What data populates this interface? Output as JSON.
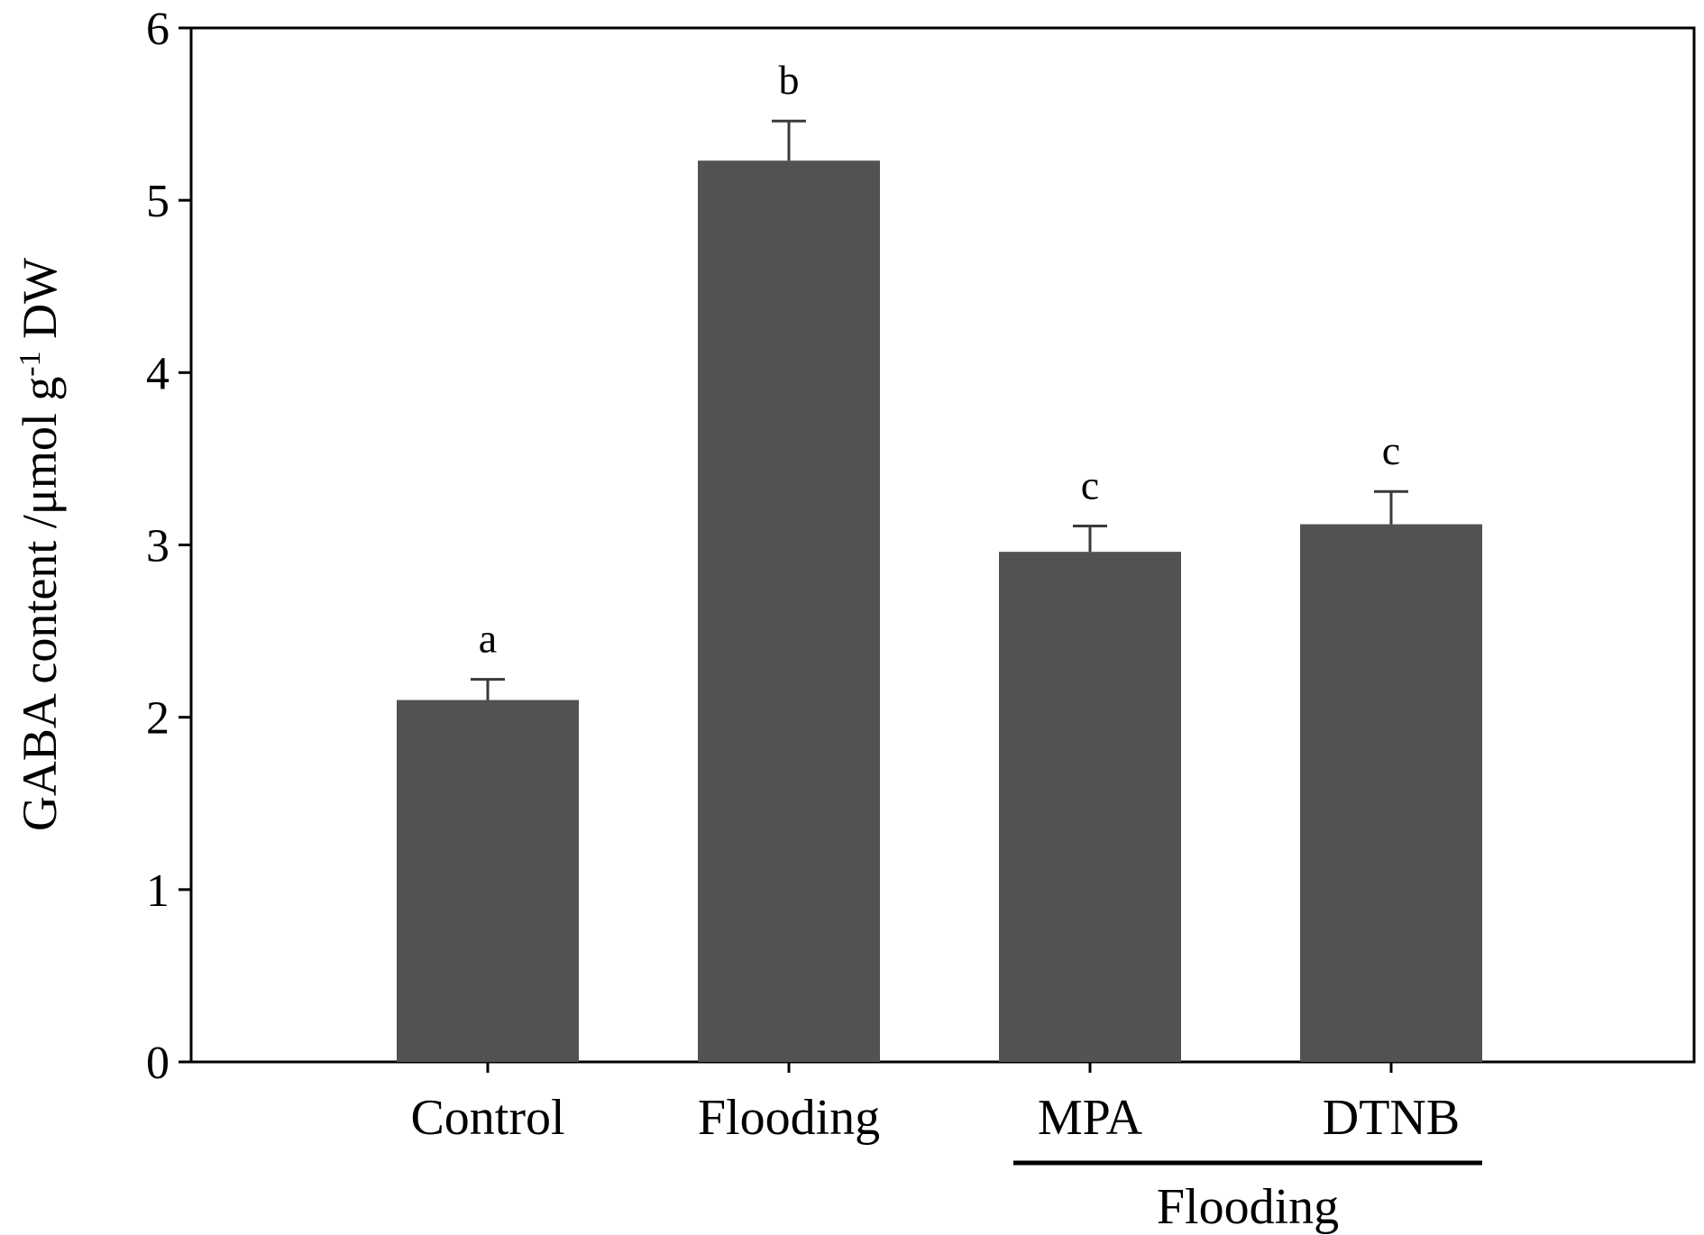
{
  "chart_data": {
    "type": "bar",
    "title": "",
    "xlabel": "",
    "ylabel": {
      "main": "GABA content /μmol g",
      "superscript": "-1",
      "suffix": " DW"
    },
    "ylim": [
      0,
      6
    ],
    "yticks": [
      0,
      1,
      2,
      3,
      4,
      5,
      6
    ],
    "grid": false,
    "legend": "none",
    "categories": [
      "Control",
      "Flooding",
      "MPA",
      "DTNB"
    ],
    "values": [
      2.1,
      5.23,
      2.96,
      3.12
    ],
    "errors": [
      0.12,
      0.23,
      0.15,
      0.19
    ],
    "significance": [
      "a",
      "b",
      "c",
      "c"
    ],
    "bracket_label": "Flooding",
    "bracket_covers": [
      "MPA",
      "DTNB"
    ],
    "bar_color": "#525252"
  }
}
